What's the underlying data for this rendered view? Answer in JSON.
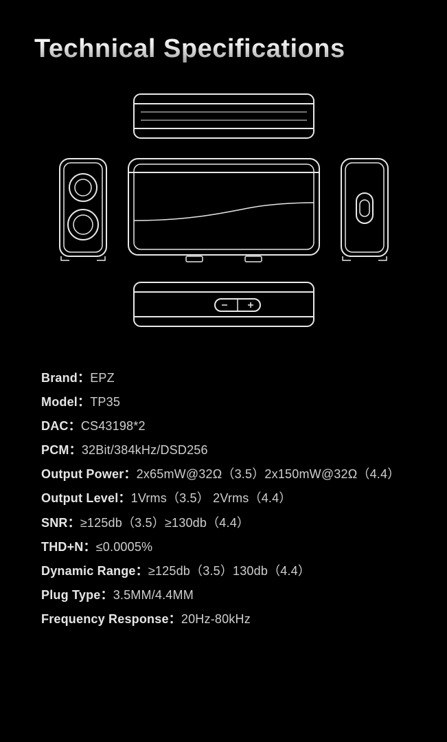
{
  "title": "Technical Specifications",
  "diagram": {
    "stroke": "#e8e8e8",
    "stroke_width": 2,
    "background": "#000000"
  },
  "specs": [
    {
      "label": "Brand",
      "value": "EPZ"
    },
    {
      "label": "Model",
      "value": "TP35"
    },
    {
      "label": "DAC",
      "value": "CS43198*2"
    },
    {
      "label": "PCM",
      "value": "32Bit/384kHz/DSD256"
    },
    {
      "label": "Output Power",
      "value": "2x65mW@32Ω（3.5）2x150mW@32Ω（4.4）"
    },
    {
      "label": "Output Level",
      "value": "1Vrms（3.5） 2Vrms（4.4）"
    },
    {
      "label": "SNR",
      "value": "≥125db（3.5）≥130db（4.4）"
    },
    {
      "label": "THD+N",
      "value": "≤0.0005%"
    },
    {
      "label": "Dynamic Range",
      "value": "≥125db（3.5）130db（4.4）"
    },
    {
      "label": "Plug Type",
      "value": "3.5MM/4.4MM"
    },
    {
      "label": "Frequency Response",
      "value": "20Hz-80kHz"
    }
  ],
  "colors": {
    "background": "#000000",
    "title_gradient_top": "#ffffff",
    "title_gradient_bottom": "#9a9a9a",
    "label_color": "#e6e6e6",
    "value_color": "#cfcfcf"
  },
  "typography": {
    "title_fontsize": 38,
    "title_weight": 700,
    "spec_fontsize": 18,
    "label_weight": 600,
    "value_weight": 400,
    "line_height": 1.95
  }
}
